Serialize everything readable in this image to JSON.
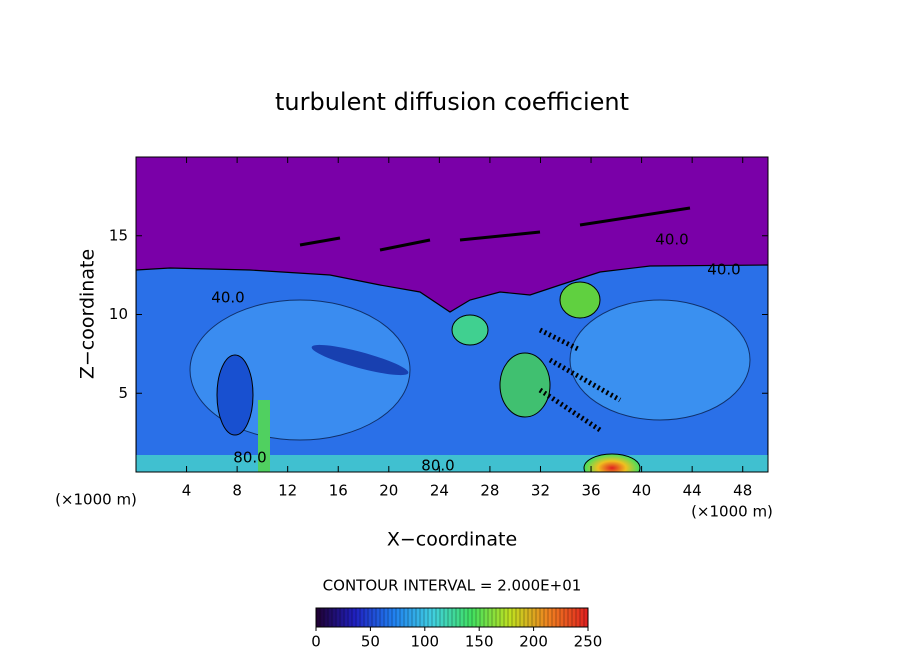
{
  "chart_data": {
    "type": "contour",
    "title": "turbulent diffusion coefficient",
    "xlabel": "X−coordinate",
    "ylabel": "Z−coordinate",
    "xunit": "(×1000 m)",
    "xlim": [
      0,
      50
    ],
    "xticks": [
      4,
      8,
      12,
      16,
      20,
      24,
      28,
      32,
      36,
      40,
      44,
      48
    ],
    "ylim": [
      0,
      20
    ],
    "yticks": [
      5,
      10,
      15
    ],
    "annotations": [
      "40.0",
      "40.0",
      "40.0",
      "80.0",
      "80.0"
    ],
    "colorbar": {
      "label": "CONTOUR INTERVAL = 2.000E+01",
      "lim": [
        0,
        250
      ],
      "ticks": [
        0,
        50,
        100,
        150,
        200,
        250
      ],
      "colors": [
        "#200030",
        "#2020c0",
        "#2080f0",
        "#40d0e0",
        "#40e060",
        "#c0e020",
        "#f08020",
        "#e02020"
      ]
    }
  }
}
